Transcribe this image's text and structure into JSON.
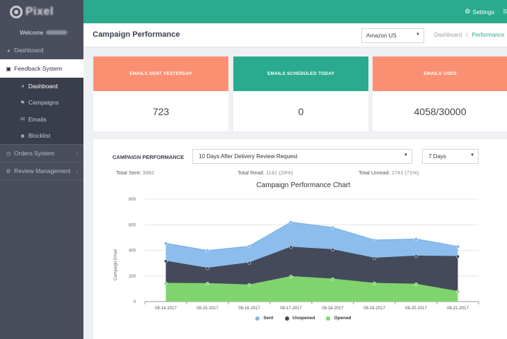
{
  "brand": {
    "name": "Pixel"
  },
  "sidebar": {
    "welcome": "Welcome",
    "items": [
      {
        "label": "Dashboard",
        "icon": "dashboard-icon"
      },
      {
        "label": "Feedback System",
        "icon": "inbox-icon"
      },
      {
        "label": "Orders System",
        "icon": "clock-icon"
      },
      {
        "label": "Review Management",
        "icon": "gear-icon"
      }
    ],
    "submenu": [
      {
        "label": "Dashboard",
        "icon": "dashboard-icon"
      },
      {
        "label": "Campaigns",
        "icon": "bullhorn-icon"
      },
      {
        "label": "Emails",
        "icon": "envelope-icon"
      },
      {
        "label": "Blocklist",
        "icon": "user-block-icon"
      }
    ]
  },
  "topbar": {
    "settings": "Settings",
    "more": "S"
  },
  "header": {
    "title": "Campaign Performance",
    "store": "Amazon US",
    "breadcrumb": {
      "home": "Dashboard",
      "current": "Performance"
    }
  },
  "stats": [
    {
      "label": "EMAILS SENT YESTERDAY",
      "value": "723"
    },
    {
      "label": "EMAILS SCHEDULED TODAY",
      "value": "0"
    },
    {
      "label": "EMAILS USED",
      "value": "4058/30000"
    }
  ],
  "campaign": {
    "label": "CAMPAIGN PERFORMANCE",
    "selected": "10 Days After Delivery Review Request",
    "period": "7 Days",
    "totals": {
      "sent_label": "Total Sent:",
      "sent": "3882",
      "read_label": "Total Read:",
      "read": "1141 (29%)",
      "unread_label": "Total Unread:",
      "unread": "2741 (71%)"
    }
  },
  "colors": {
    "accent": "#2aab8d",
    "coral": "#fb8f72",
    "sidebar": "#4a4e5c"
  },
  "chart_data": {
    "type": "area",
    "title": "Campaign Performance Chart",
    "ylabel": "Campaign Email",
    "xlabel": "",
    "x": [
      "08-14-2017",
      "08-15-2017",
      "08-16-2017",
      "08-17-2017",
      "08-18-2017",
      "08-19-2017",
      "08-20-2017",
      "08-21-2017"
    ],
    "ylim": [
      0,
      800
    ],
    "yticks": [
      0,
      200,
      400,
      600,
      800
    ],
    "grid": true,
    "legend": "bottom",
    "series": [
      {
        "name": "Sent",
        "color": "#7fb6ea",
        "values": [
          455,
          398,
          432,
          620,
          578,
          480,
          488,
          430
        ]
      },
      {
        "name": "Unopened",
        "color": "#444a5a",
        "values": [
          315,
          260,
          302,
          425,
          405,
          338,
          355,
          352
        ]
      },
      {
        "name": "Opened",
        "color": "#80d46e",
        "values": [
          142,
          140,
          130,
          195,
          175,
          142,
          135,
          78
        ]
      }
    ]
  }
}
